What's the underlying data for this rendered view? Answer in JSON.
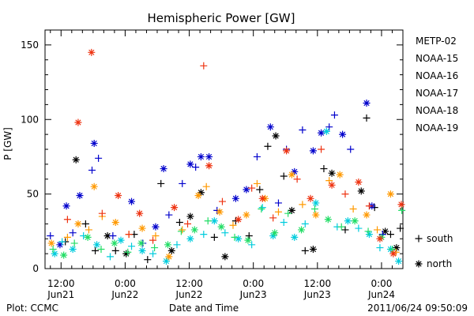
{
  "chart_data": {
    "type": "scatter",
    "title": "Hemispheric Power [GW]",
    "xlabel": "Date and Time",
    "ylabel": "P [GW]",
    "ylim": [
      0,
      160
    ],
    "yticks": [
      0,
      50,
      100,
      150
    ],
    "xlim_hours": [
      -3,
      64
    ],
    "xticks": [
      {
        "top": "12:00",
        "bottom": "Jun21",
        "hours": 0
      },
      {
        "top": "0:00",
        "bottom": "Jun22",
        "hours": 12
      },
      {
        "top": "12:00",
        "bottom": "Jun22",
        "hours": 24
      },
      {
        "top": "0:00",
        "bottom": "Jun23",
        "hours": 36
      },
      {
        "top": "12:00",
        "bottom": "Jun23",
        "hours": 48
      },
      {
        "top": "0:00",
        "bottom": "Jun24",
        "hours": 60
      }
    ],
    "grid": false,
    "legend_position": "right",
    "marker_legend": [
      {
        "marker": "+",
        "label": "south"
      },
      {
        "marker": "*",
        "label": "north"
      }
    ],
    "series": [
      {
        "name": "METP-02",
        "color": "#000000",
        "points": [
          {
            "x": 0.8,
            "y": 18,
            "m": "+"
          },
          {
            "x": 2.8,
            "y": 73,
            "m": "*"
          },
          {
            "x": 4.6,
            "y": 30,
            "m": "+"
          },
          {
            "x": 6.4,
            "y": 12,
            "m": "+"
          },
          {
            "x": 8.7,
            "y": 22,
            "m": "*"
          },
          {
            "x": 10.2,
            "y": 12,
            "m": "+"
          },
          {
            "x": 12.2,
            "y": 10,
            "m": "*"
          },
          {
            "x": 13.7,
            "y": 23,
            "m": "+"
          },
          {
            "x": 16.2,
            "y": 6,
            "m": "+"
          },
          {
            "x": 18.7,
            "y": 57,
            "m": "+"
          },
          {
            "x": 20.7,
            "y": 12,
            "m": "*"
          },
          {
            "x": 22.2,
            "y": 31,
            "m": "+"
          },
          {
            "x": 24.2,
            "y": 35,
            "m": "*"
          },
          {
            "x": 26.2,
            "y": 51,
            "m": "*"
          },
          {
            "x": 28.7,
            "y": 21,
            "m": "+"
          },
          {
            "x": 30.7,
            "y": 8,
            "m": "*"
          },
          {
            "x": 32.7,
            "y": 32,
            "m": "+"
          },
          {
            "x": 35.2,
            "y": 22,
            "m": "+"
          },
          {
            "x": 37.2,
            "y": 53,
            "m": "+"
          },
          {
            "x": 38.7,
            "y": 82,
            "m": "+"
          },
          {
            "x": 40.2,
            "y": 89,
            "m": "*"
          },
          {
            "x": 41.7,
            "y": 62,
            "m": "+"
          },
          {
            "x": 43.2,
            "y": 39,
            "m": "*"
          },
          {
            "x": 45.7,
            "y": 12,
            "m": "+"
          },
          {
            "x": 47.2,
            "y": 13,
            "m": "*"
          },
          {
            "x": 49.2,
            "y": 67,
            "m": "+"
          },
          {
            "x": 50.7,
            "y": 64,
            "m": "*"
          },
          {
            "x": 53.2,
            "y": 26,
            "m": "+"
          },
          {
            "x": 56.2,
            "y": 52,
            "m": "*"
          },
          {
            "x": 57.2,
            "y": 101,
            "m": "+"
          },
          {
            "x": 58.7,
            "y": 41,
            "m": "+"
          },
          {
            "x": 60.7,
            "y": 25,
            "m": "*"
          },
          {
            "x": 61.7,
            "y": 23,
            "m": "+"
          },
          {
            "x": 62.8,
            "y": 14,
            "m": "*"
          },
          {
            "x": 63.5,
            "y": 27,
            "m": "+"
          }
        ]
      },
      {
        "name": "NOAA-15",
        "color": "#0000cc",
        "points": [
          {
            "x": -2.0,
            "y": 22,
            "m": "+"
          },
          {
            "x": -0.2,
            "y": 16,
            "m": "*"
          },
          {
            "x": 1.0,
            "y": 42,
            "m": "*"
          },
          {
            "x": 2.2,
            "y": 24,
            "m": "+"
          },
          {
            "x": 3.5,
            "y": 49,
            "m": "*"
          },
          {
            "x": 5.8,
            "y": 66,
            "m": "+"
          },
          {
            "x": 6.2,
            "y": 84,
            "m": "*"
          },
          {
            "x": 7.0,
            "y": 74,
            "m": "+"
          },
          {
            "x": 9.7,
            "y": 22,
            "m": "+"
          },
          {
            "x": 13.2,
            "y": 45,
            "m": "*"
          },
          {
            "x": 15.3,
            "y": 17,
            "m": "+"
          },
          {
            "x": 17.7,
            "y": 28,
            "m": "*"
          },
          {
            "x": 19.2,
            "y": 67,
            "m": "*"
          },
          {
            "x": 20.2,
            "y": 36,
            "m": "+"
          },
          {
            "x": 22.7,
            "y": 57,
            "m": "+"
          },
          {
            "x": 24.2,
            "y": 70,
            "m": "*"
          },
          {
            "x": 25.2,
            "y": 68,
            "m": "+"
          },
          {
            "x": 26.2,
            "y": 75,
            "m": "*"
          },
          {
            "x": 27.7,
            "y": 75,
            "m": "*"
          },
          {
            "x": 29.2,
            "y": 39,
            "m": "+"
          },
          {
            "x": 32.7,
            "y": 47,
            "m": "*"
          },
          {
            "x": 34.7,
            "y": 53,
            "m": "*"
          },
          {
            "x": 36.7,
            "y": 75,
            "m": "+"
          },
          {
            "x": 39.2,
            "y": 95,
            "m": "*"
          },
          {
            "x": 40.7,
            "y": 44,
            "m": "+"
          },
          {
            "x": 42.2,
            "y": 80,
            "m": "+"
          },
          {
            "x": 43.7,
            "y": 65,
            "m": "*"
          },
          {
            "x": 45.2,
            "y": 93,
            "m": "+"
          },
          {
            "x": 47.2,
            "y": 79,
            "m": "*"
          },
          {
            "x": 48.7,
            "y": 91,
            "m": "*"
          },
          {
            "x": 50.2,
            "y": 95,
            "m": "+"
          },
          {
            "x": 51.2,
            "y": 103,
            "m": "+"
          },
          {
            "x": 52.7,
            "y": 90,
            "m": "*"
          },
          {
            "x": 54.2,
            "y": 80,
            "m": "+"
          },
          {
            "x": 57.2,
            "y": 111,
            "m": "*"
          },
          {
            "x": 58.2,
            "y": 42,
            "m": "*"
          },
          {
            "x": 60.2,
            "y": 23,
            "m": "+"
          }
        ]
      },
      {
        "name": "NOAA-16",
        "color": "#00ccdd",
        "points": [
          {
            "x": -1.2,
            "y": 10,
            "m": "*"
          },
          {
            "x": 0.2,
            "y": 18,
            "m": "+"
          },
          {
            "x": 2.2,
            "y": 13,
            "m": "*"
          },
          {
            "x": 4.2,
            "y": 22,
            "m": "+"
          },
          {
            "x": 6.7,
            "y": 16,
            "m": "*"
          },
          {
            "x": 9.2,
            "y": 8,
            "m": "+"
          },
          {
            "x": 11.2,
            "y": 19,
            "m": "*"
          },
          {
            "x": 13.2,
            "y": 15,
            "m": "+"
          },
          {
            "x": 15.2,
            "y": 12,
            "m": "*"
          },
          {
            "x": 17.2,
            "y": 10,
            "m": "+"
          },
          {
            "x": 19.7,
            "y": 5,
            "m": "*"
          },
          {
            "x": 21.7,
            "y": 16,
            "m": "+"
          },
          {
            "x": 24.2,
            "y": 20,
            "m": "*"
          },
          {
            "x": 26.7,
            "y": 23,
            "m": "+"
          },
          {
            "x": 28.7,
            "y": 32,
            "m": "*"
          },
          {
            "x": 30.7,
            "y": 24,
            "m": "+"
          },
          {
            "x": 33.2,
            "y": 20,
            "m": "*"
          },
          {
            "x": 35.7,
            "y": 16,
            "m": "+"
          },
          {
            "x": 37.7,
            "y": 41,
            "m": "+"
          },
          {
            "x": 39.7,
            "y": 22,
            "m": "*"
          },
          {
            "x": 41.7,
            "y": 31,
            "m": "+"
          },
          {
            "x": 43.7,
            "y": 21,
            "m": "*"
          },
          {
            "x": 45.7,
            "y": 30,
            "m": "+"
          },
          {
            "x": 47.7,
            "y": 44,
            "m": "*"
          },
          {
            "x": 49.7,
            "y": 92,
            "m": "*"
          },
          {
            "x": 51.7,
            "y": 28,
            "m": "+"
          },
          {
            "x": 53.7,
            "y": 32,
            "m": "*"
          },
          {
            "x": 55.7,
            "y": 27,
            "m": "+"
          },
          {
            "x": 57.7,
            "y": 23,
            "m": "*"
          },
          {
            "x": 59.7,
            "y": 14,
            "m": "+"
          },
          {
            "x": 61.7,
            "y": 13,
            "m": "*"
          },
          {
            "x": 63.2,
            "y": 5,
            "m": "*"
          }
        ]
      },
      {
        "name": "NOAA-17",
        "color": "#22dd66",
        "points": [
          {
            "x": -1.5,
            "y": 13,
            "m": "+"
          },
          {
            "x": 0.5,
            "y": 9,
            "m": "*"
          },
          {
            "x": 2.5,
            "y": 17,
            "m": "+"
          },
          {
            "x": 5.0,
            "y": 21,
            "m": "*"
          },
          {
            "x": 7.5,
            "y": 13,
            "m": "+"
          },
          {
            "x": 10.0,
            "y": 17,
            "m": "*"
          },
          {
            "x": 12.5,
            "y": 11,
            "m": "+"
          },
          {
            "x": 15.0,
            "y": 17,
            "m": "*"
          },
          {
            "x": 17.5,
            "y": 14,
            "m": "+"
          },
          {
            "x": 20.0,
            "y": 16,
            "m": "*"
          },
          {
            "x": 22.5,
            "y": 25,
            "m": "+"
          },
          {
            "x": 25.0,
            "y": 26,
            "m": "*"
          },
          {
            "x": 27.5,
            "y": 32,
            "m": "+"
          },
          {
            "x": 30.0,
            "y": 28,
            "m": "*"
          },
          {
            "x": 32.5,
            "y": 21,
            "m": "+"
          },
          {
            "x": 35.0,
            "y": 19,
            "m": "*"
          },
          {
            "x": 37.5,
            "y": 40,
            "m": "+"
          },
          {
            "x": 40.0,
            "y": 24,
            "m": "*"
          },
          {
            "x": 42.5,
            "y": 37,
            "m": "+"
          },
          {
            "x": 45.0,
            "y": 26,
            "m": "*"
          },
          {
            "x": 47.5,
            "y": 40,
            "m": "+"
          },
          {
            "x": 50.0,
            "y": 33,
            "m": "*"
          },
          {
            "x": 52.5,
            "y": 28,
            "m": "+"
          },
          {
            "x": 55.0,
            "y": 32,
            "m": "*"
          },
          {
            "x": 57.5,
            "y": 25,
            "m": "+"
          },
          {
            "x": 60.0,
            "y": 21,
            "m": "*"
          },
          {
            "x": 62.0,
            "y": 13,
            "m": "+"
          },
          {
            "x": 63.8,
            "y": 39,
            "m": "+"
          }
        ]
      },
      {
        "name": "NOAA-18",
        "color": "#ff9900",
        "points": [
          {
            "x": -1.8,
            "y": 17,
            "m": "*"
          },
          {
            "x": 1.2,
            "y": 21,
            "m": "+"
          },
          {
            "x": 3.2,
            "y": 30,
            "m": "*"
          },
          {
            "x": 5.2,
            "y": 26,
            "m": "+"
          },
          {
            "x": 6.2,
            "y": 55,
            "m": "*"
          },
          {
            "x": 7.7,
            "y": 35,
            "m": "+"
          },
          {
            "x": 10.2,
            "y": 31,
            "m": "*"
          },
          {
            "x": 12.7,
            "y": 23,
            "m": "+"
          },
          {
            "x": 15.2,
            "y": 27,
            "m": "*"
          },
          {
            "x": 17.7,
            "y": 22,
            "m": "+"
          },
          {
            "x": 20.2,
            "y": 8,
            "m": "*"
          },
          {
            "x": 22.7,
            "y": 26,
            "m": "+"
          },
          {
            "x": 25.7,
            "y": 49,
            "m": "*"
          },
          {
            "x": 27.2,
            "y": 55,
            "m": "+"
          },
          {
            "x": 29.7,
            "y": 38,
            "m": "*"
          },
          {
            "x": 32.2,
            "y": 29,
            "m": "+"
          },
          {
            "x": 34.7,
            "y": 36,
            "m": "*"
          },
          {
            "x": 36.7,
            "y": 57,
            "m": "+"
          },
          {
            "x": 38.2,
            "y": 47,
            "m": "*"
          },
          {
            "x": 40.7,
            "y": 38,
            "m": "+"
          },
          {
            "x": 43.2,
            "y": 63,
            "m": "*"
          },
          {
            "x": 45.2,
            "y": 43,
            "m": "+"
          },
          {
            "x": 47.7,
            "y": 36,
            "m": "*"
          },
          {
            "x": 50.2,
            "y": 59,
            "m": "+"
          },
          {
            "x": 52.2,
            "y": 63,
            "m": "*"
          },
          {
            "x": 54.7,
            "y": 40,
            "m": "+"
          },
          {
            "x": 57.2,
            "y": 36,
            "m": "*"
          },
          {
            "x": 59.2,
            "y": 26,
            "m": "+"
          },
          {
            "x": 61.7,
            "y": 50,
            "m": "*"
          },
          {
            "x": 62.7,
            "y": 11,
            "m": "+"
          }
        ]
      },
      {
        "name": "NOAA-19",
        "color": "#ee3311",
        "points": [
          {
            "x": 1.2,
            "y": 33,
            "m": "+"
          },
          {
            "x": 3.2,
            "y": 98,
            "m": "*"
          },
          {
            "x": 5.7,
            "y": 145,
            "m": "*"
          },
          {
            "x": 7.7,
            "y": 37,
            "m": "+"
          },
          {
            "x": 10.7,
            "y": 49,
            "m": "*"
          },
          {
            "x": 12.7,
            "y": 23,
            "m": "+"
          },
          {
            "x": 14.7,
            "y": 37,
            "m": "*"
          },
          {
            "x": 17.2,
            "y": 19,
            "m": "+"
          },
          {
            "x": 21.2,
            "y": 41,
            "m": "*"
          },
          {
            "x": 23.7,
            "y": 30,
            "m": "+"
          },
          {
            "x": 26.7,
            "y": 136,
            "m": "+"
          },
          {
            "x": 27.7,
            "y": 69,
            "m": "*"
          },
          {
            "x": 30.2,
            "y": 45,
            "m": "+"
          },
          {
            "x": 33.2,
            "y": 33,
            "m": "*"
          },
          {
            "x": 35.7,
            "y": 54,
            "m": "+"
          },
          {
            "x": 37.7,
            "y": 47,
            "m": "*"
          },
          {
            "x": 39.7,
            "y": 34,
            "m": "+"
          },
          {
            "x": 42.2,
            "y": 79,
            "m": "*"
          },
          {
            "x": 44.2,
            "y": 60,
            "m": "+"
          },
          {
            "x": 46.7,
            "y": 47,
            "m": "*"
          },
          {
            "x": 48.7,
            "y": 80,
            "m": "+"
          },
          {
            "x": 50.7,
            "y": 56,
            "m": "*"
          },
          {
            "x": 53.2,
            "y": 50,
            "m": "+"
          },
          {
            "x": 55.7,
            "y": 58,
            "m": "*"
          },
          {
            "x": 57.7,
            "y": 42,
            "m": "+"
          },
          {
            "x": 59.7,
            "y": 20,
            "m": "*"
          },
          {
            "x": 62.2,
            "y": 10,
            "m": "*"
          },
          {
            "x": 63.7,
            "y": 43,
            "m": "*"
          }
        ]
      }
    ]
  },
  "footer": {
    "plot_label": "Plot: CCMC",
    "timestamp": "2011/06/24 09:50:09"
  }
}
